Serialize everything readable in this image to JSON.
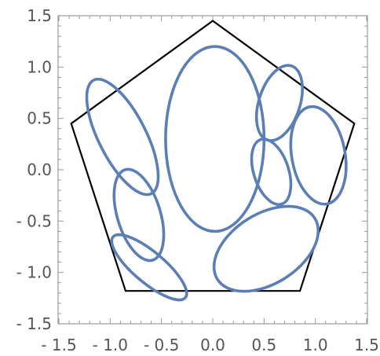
{
  "chart_data": {
    "type": "scatter",
    "xlim": [
      -1.5,
      1.5
    ],
    "ylim": [
      -1.5,
      1.5
    ],
    "x_ticks": [
      "- 1.5",
      "- 1.0",
      "- 0.5",
      "0.0",
      "0.5",
      "1.0",
      "1.5"
    ],
    "y_ticks": [
      "1.5",
      "1.0",
      "0.5",
      "0.0",
      "- 0.5",
      "- 1.0",
      "- 1.5"
    ],
    "x_tick_values": [
      -1.5,
      -1.0,
      -0.5,
      0.0,
      0.5,
      1.0,
      1.5
    ],
    "y_tick_values": [
      1.5,
      1.0,
      0.5,
      0.0,
      -0.5,
      -1.0,
      -1.5
    ],
    "grid": false,
    "pentagon": [
      [
        0.0,
        1.45
      ],
      [
        1.38,
        0.45
      ],
      [
        0.85,
        -1.18
      ],
      [
        -0.85,
        -1.18
      ],
      [
        -1.38,
        0.45
      ]
    ],
    "ellipses": [
      {
        "cx": 0.02,
        "cy": 0.3,
        "rx": 0.48,
        "ry": 0.9,
        "angle": 0
      },
      {
        "cx": -0.88,
        "cy": 0.32,
        "rx": 0.23,
        "ry": 0.62,
        "angle": -27
      },
      {
        "cx": -0.72,
        "cy": -0.44,
        "rx": 0.21,
        "ry": 0.46,
        "angle": -17
      },
      {
        "cx": -0.62,
        "cy": -0.95,
        "rx": 0.15,
        "ry": 0.46,
        "angle": -50
      },
      {
        "cx": 0.52,
        "cy": -0.77,
        "rx": 0.56,
        "ry": 0.34,
        "angle": -32
      },
      {
        "cx": 0.65,
        "cy": 0.65,
        "rx": 0.2,
        "ry": 0.38,
        "angle": 18
      },
      {
        "cx": 1.03,
        "cy": 0.14,
        "rx": 0.26,
        "ry": 0.48,
        "angle": -10
      },
      {
        "cx": 0.57,
        "cy": -0.02,
        "rx": 0.17,
        "ry": 0.33,
        "angle": -18
      }
    ],
    "ellipse_color": "#5b7fb5",
    "outline_color": "#000000"
  }
}
